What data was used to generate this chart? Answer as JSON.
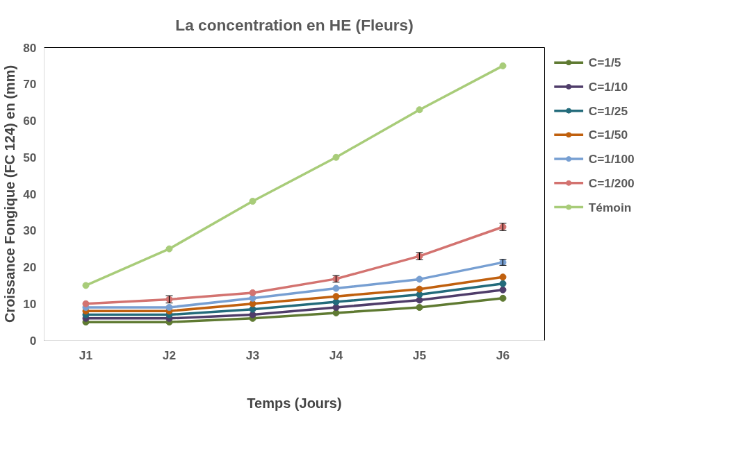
{
  "chart_data": {
    "type": "line",
    "title": "La concentration en HE (Fleurs)",
    "xlabel": "Temps (Jours)",
    "ylabel": "Croissance Fongique (FC 124) en (mm)",
    "categories": [
      "J1",
      "J2",
      "J3",
      "J4",
      "J5",
      "J6"
    ],
    "ylim": [
      0,
      80
    ],
    "yticks": [
      0,
      10,
      20,
      30,
      40,
      50,
      60,
      70,
      80
    ],
    "grid": false,
    "legend": "right",
    "marker": "circle",
    "line_style": "solid",
    "series": [
      {
        "name": "C=1/5",
        "color": "#5f7a32",
        "values": [
          5,
          5,
          6,
          7.5,
          9,
          11.5
        ]
      },
      {
        "name": "C=1/10",
        "color": "#4f3d6a",
        "values": [
          6,
          6,
          7,
          9,
          11,
          13.8
        ]
      },
      {
        "name": "C=1/25",
        "color": "#236b7b",
        "values": [
          7,
          7,
          8.5,
          10.5,
          12.5,
          15.5
        ]
      },
      {
        "name": "C=1/50",
        "color": "#c0600e",
        "values": [
          8,
          8,
          10,
          12,
          14,
          17.3
        ]
      },
      {
        "name": "C=1/100",
        "color": "#779fd2",
        "values": [
          9,
          9,
          11.5,
          14.2,
          16.7,
          21.3
        ],
        "errors": [
          null,
          null,
          null,
          null,
          null,
          0.8
        ]
      },
      {
        "name": "C=1/200",
        "color": "#d37370",
        "values": [
          10,
          11.2,
          13,
          16.8,
          23,
          31
        ],
        "errors": [
          null,
          1,
          null,
          0.9,
          1,
          1
        ]
      },
      {
        "name": "Témoin",
        "color": "#a8cc79",
        "values": [
          15,
          25,
          38,
          50,
          63,
          75
        ]
      }
    ]
  }
}
